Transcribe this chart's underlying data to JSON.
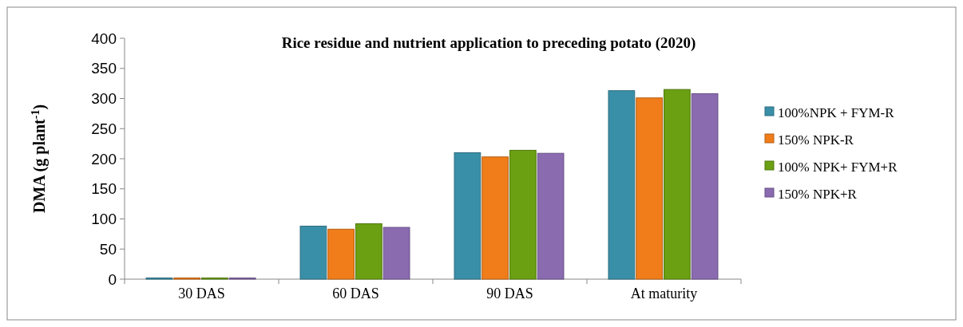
{
  "chart_data": {
    "type": "bar",
    "title": "Rice residue and nutrient application to preceding potato (2020)",
    "ylabel": "DMA (g plant$^{-1}$)",
    "categories": [
      "30 DAS",
      "60 DAS",
      "90 DAS",
      "At maturity"
    ],
    "series": [
      {
        "name": "100%NPK + FYM-R",
        "color": "#3a8fa8",
        "values": [
          2,
          88,
          210,
          313
        ]
      },
      {
        "name": "150% NPK-R",
        "color": "#f07d1a",
        "values": [
          2,
          83,
          203,
          301
        ]
      },
      {
        "name": "100% NPK+ FYM+R",
        "color": "#6aa012",
        "values": [
          2,
          92,
          214,
          315
        ]
      },
      {
        "name": "150% NPK+R",
        "color": "#8a6bb0",
        "values": [
          2,
          86,
          209,
          308
        ]
      }
    ],
    "ylim": [
      0,
      400
    ],
    "yticks": [
      0,
      50,
      100,
      150,
      200,
      250,
      300,
      350,
      400
    ],
    "legend": "right"
  }
}
